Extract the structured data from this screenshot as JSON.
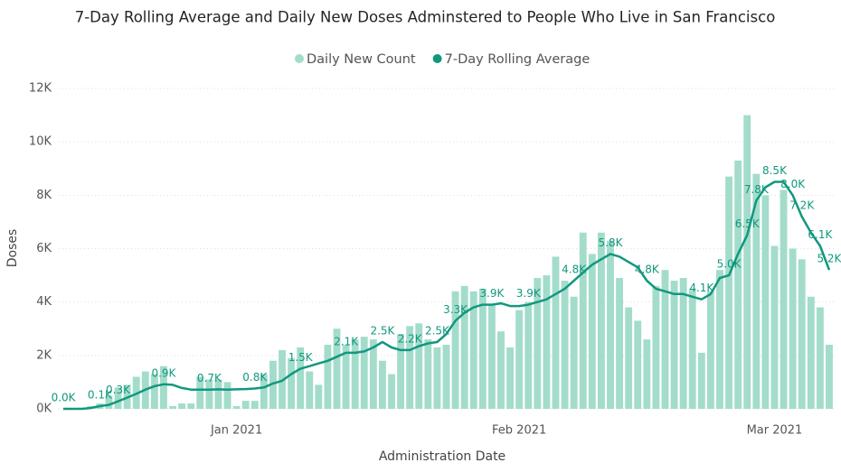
{
  "chart_data": {
    "type": "bar",
    "title": "7-Day Rolling Average and Daily New Doses Adminstered to People Who Live in San Francisco",
    "x_label": "Administration Date",
    "y_label": "Doses",
    "categories": [
      null,
      null,
      null,
      null,
      null,
      null,
      null,
      null,
      null,
      null,
      null,
      null,
      null,
      null,
      null,
      null,
      null,
      null,
      null,
      "Jan 2021",
      null,
      null,
      null,
      null,
      null,
      null,
      null,
      null,
      null,
      null,
      null,
      null,
      null,
      null,
      null,
      null,
      null,
      null,
      null,
      null,
      null,
      null,
      null,
      null,
      null,
      null,
      null,
      null,
      null,
      null,
      "Feb 2021",
      null,
      null,
      null,
      null,
      null,
      null,
      null,
      null,
      null,
      null,
      null,
      null,
      null,
      null,
      null,
      null,
      null,
      null,
      null,
      null,
      null,
      null,
      null,
      null,
      null,
      null,
      null,
      "Mar 2021",
      null,
      null,
      null,
      null,
      null,
      null
    ],
    "series": [
      {
        "name": "Daily New Count",
        "type": "bar",
        "color": "#a3dccb",
        "values": [
          0,
          0,
          0,
          100,
          200,
          500,
          800,
          900,
          1200,
          1400,
          1300,
          1600,
          100,
          200,
          200,
          1200,
          1100,
          1100,
          1000,
          100,
          300,
          300,
          1300,
          1800,
          2200,
          1900,
          2300,
          1400,
          900,
          2400,
          3000,
          2400,
          2600,
          2700,
          2600,
          1800,
          1300,
          2800,
          3100,
          3200,
          2600,
          2300,
          2400,
          4400,
          4600,
          4400,
          4500,
          3900,
          2900,
          2300,
          3700,
          4000,
          4900,
          5000,
          5700,
          4800,
          4200,
          6600,
          5800,
          6600,
          6300,
          4900,
          3800,
          3300,
          2600,
          4600,
          5200,
          4800,
          4900,
          4500,
          2100,
          4400,
          5200,
          8700,
          9300,
          11000,
          8800,
          8000,
          6100,
          8200,
          6000,
          5600,
          4200,
          3800,
          2400
        ]
      },
      {
        "name": "7-Day Rolling Average",
        "type": "line",
        "color": "#11987e",
        "values": [
          0,
          0,
          0,
          30,
          100,
          150,
          280,
          420,
          560,
          720,
          850,
          920,
          900,
          780,
          720,
          720,
          720,
          730,
          720,
          730,
          740,
          760,
          800,
          950,
          1050,
          1300,
          1500,
          1600,
          1700,
          1800,
          1950,
          2100,
          2100,
          2150,
          2300,
          2500,
          2300,
          2200,
          2200,
          2350,
          2450,
          2500,
          2800,
          3300,
          3600,
          3800,
          3900,
          3900,
          3950,
          3850,
          3850,
          3900,
          4000,
          4100,
          4300,
          4500,
          4800,
          5100,
          5400,
          5600,
          5800,
          5700,
          5500,
          5300,
          4800,
          4500,
          4400,
          4300,
          4300,
          4200,
          4100,
          4300,
          4900,
          5000,
          5800,
          6500,
          7800,
          8300,
          8500,
          8500,
          8000,
          7200,
          6600,
          6100,
          5200
        ],
        "value_labels": [
          "0.0K",
          null,
          null,
          null,
          "0.1K",
          null,
          "0.3K",
          null,
          null,
          null,
          null,
          "0.9K",
          null,
          null,
          null,
          null,
          "0.7K",
          null,
          null,
          null,
          null,
          "0.8K",
          null,
          null,
          null,
          null,
          "1.5K",
          null,
          null,
          null,
          null,
          "2.1K",
          null,
          null,
          null,
          "2.5K",
          null,
          null,
          "2.2K",
          null,
          null,
          "2.5K",
          null,
          "3.3K",
          null,
          null,
          null,
          "3.9K",
          null,
          null,
          null,
          "3.9K",
          null,
          null,
          null,
          null,
          "4.8K",
          null,
          null,
          null,
          "5.8K",
          null,
          null,
          null,
          "4.8K",
          null,
          null,
          null,
          null,
          null,
          "4.1K",
          null,
          null,
          "5.0K",
          null,
          "6.5K",
          "7.8K",
          null,
          "8.5K",
          null,
          "8.0K",
          "7.2K",
          null,
          "6.1K",
          "5.2K"
        ]
      }
    ],
    "ylim": [
      0,
      12000
    ],
    "yticks": [
      {
        "value": 0,
        "label": "0K"
      },
      {
        "value": 2000,
        "label": "2K"
      },
      {
        "value": 4000,
        "label": "4K"
      },
      {
        "value": 6000,
        "label": "6K"
      },
      {
        "value": 8000,
        "label": "8K"
      },
      {
        "value": 10000,
        "label": "10K"
      },
      {
        "value": 12000,
        "label": "12K"
      }
    ],
    "grid": true,
    "legend": "top"
  }
}
